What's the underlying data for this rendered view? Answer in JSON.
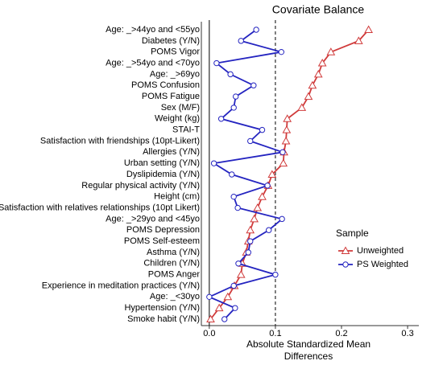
{
  "chart_data": {
    "type": "dot_line",
    "title": "Covariate Balance",
    "x_label": [
      "Absolute Standardized Mean",
      "Differences"
    ],
    "categories": [
      "Age: _>44yo and <55yo",
      "Diabetes (Y/N)",
      "POMS Vigor",
      "Age: _>54yo and <70yo",
      "Age: _>69yo",
      "POMS Confusion",
      "POMS Fatigue",
      "Sex (M/F)",
      "Weight (kg)",
      "STAI-T",
      "Satisfaction with friendships (10pt-Likert)",
      "Allergies (Y/N)",
      "Urban setting (Y/N)",
      "Dyslipidemia (Y/N)",
      "Regular physical activity (Y/N)",
      "Height (cm)",
      "Satisfaction with relatives relationships (10pt Likert)",
      "Age: _>29yo and <45yo",
      "POMS Depression",
      "POMS Self-esteem",
      "Asthma (Y/N)",
      "Children (Y/N)",
      "POMS Anger",
      "Experience in meditation practices (Y/N)",
      "Age: _<30yo",
      "Hypertension (Y/N)",
      "Smoke habit (Y/N)"
    ],
    "series": [
      {
        "name": "Unweighted",
        "color": "#d03a3a",
        "marker": "triangle",
        "values": [
          0.241,
          0.226,
          0.184,
          0.171,
          0.165,
          0.156,
          0.15,
          0.14,
          0.118,
          0.117,
          0.116,
          0.113,
          0.112,
          0.095,
          0.089,
          0.08,
          0.073,
          0.068,
          0.062,
          0.059,
          0.056,
          0.05,
          0.048,
          0.038,
          0.028,
          0.015,
          0.002
        ]
      },
      {
        "name": "PS Weighted",
        "color": "#2424c0",
        "marker": "circle",
        "values": [
          0.071,
          0.048,
          0.109,
          0.011,
          0.032,
          0.067,
          0.04,
          0.037,
          0.018,
          0.08,
          0.062,
          0.111,
          0.007,
          0.034,
          0.088,
          0.037,
          0.043,
          0.11,
          0.09,
          0.062,
          0.059,
          0.044,
          0.1,
          0.037,
          0.0,
          0.039,
          0.023
        ]
      }
    ],
    "legend_title": "Sample",
    "xlim": [
      -0.012,
      0.317
    ],
    "xticks": [
      {
        "value": 0,
        "label": "0.0"
      },
      0.1,
      0.2,
      0.3
    ],
    "reference_lines": [
      {
        "value": 0,
        "style": "solid"
      },
      {
        "value": 0.1,
        "style": "dashed"
      }
    ]
  }
}
